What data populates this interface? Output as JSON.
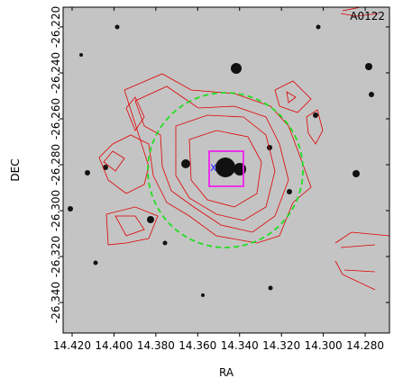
{
  "chart_data": {
    "type": "image",
    "xlabel": "RA",
    "ylabel": "DEC",
    "annotation": "A0122",
    "xlim": [
      14.4243,
      14.2684
    ],
    "ylim": [
      -26.3533,
      -26.2114
    ],
    "xticks": [
      {
        "value": 14.42,
        "label": "14.420"
      },
      {
        "value": 14.4,
        "label": "14.400"
      },
      {
        "value": 14.38,
        "label": "14.380"
      },
      {
        "value": 14.36,
        "label": "14.360"
      },
      {
        "value": 14.34,
        "label": "14.340"
      },
      {
        "value": 14.32,
        "label": "14.320"
      },
      {
        "value": 14.3,
        "label": "14.300"
      },
      {
        "value": 14.28,
        "label": "14.280"
      }
    ],
    "yticks": [
      {
        "value": -26.22,
        "label": "-26.220"
      },
      {
        "value": -26.24,
        "label": "-26.240"
      },
      {
        "value": -26.26,
        "label": "-26.260"
      },
      {
        "value": -26.28,
        "label": "-26.280"
      },
      {
        "value": -26.3,
        "label": "-26.300"
      },
      {
        "value": -26.32,
        "label": "-26.320"
      },
      {
        "value": -26.34,
        "label": "-26.340"
      }
    ]
  }
}
